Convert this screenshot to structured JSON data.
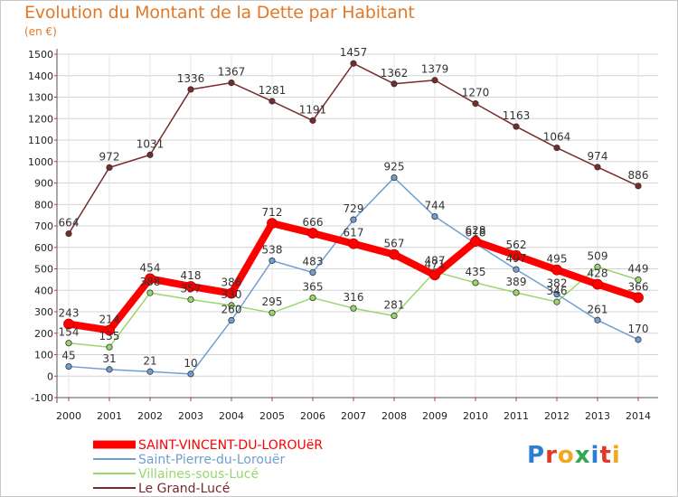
{
  "title": "Evolution du Montant de la Dette par Habitant",
  "subtitle": "(en €)",
  "logo": {
    "text": "Proxiti"
  },
  "chart_data": {
    "type": "line",
    "x": [
      "2000",
      "2001",
      "2002",
      "2003",
      "2004",
      "2005",
      "2006",
      "2007",
      "2008",
      "2009",
      "2010",
      "2011",
      "2012",
      "2013",
      "2014"
    ],
    "yticks": [
      -100,
      0,
      100,
      200,
      300,
      400,
      500,
      600,
      700,
      800,
      900,
      1000,
      1100,
      1200,
      1300,
      1400,
      1500
    ],
    "ylim": [
      -100,
      1500
    ],
    "grid": true,
    "legend_position": "bottom-left",
    "series": [
      {
        "name": "Le Grand-Lucé",
        "color": "#7a2a2a",
        "width": 1.5,
        "values": [
          664,
          972,
          1031,
          1336,
          1367,
          1281,
          1191,
          1457,
          1362,
          1379,
          1270,
          1163,
          1064,
          974,
          886
        ]
      },
      {
        "name": "Villaines-sous-Lucé",
        "color": "#99d66b",
        "width": 1.5,
        "values": [
          154,
          135,
          388,
          357,
          330,
          295,
          365,
          316,
          281,
          487,
          435,
          389,
          346,
          509,
          449
        ]
      },
      {
        "name": "Saint-Pierre-du-Lorouër",
        "color": "#6f9fd0",
        "width": 1.5,
        "values": [
          45,
          31,
          21,
          10,
          260,
          538,
          483,
          729,
          925,
          744,
          618,
          497,
          382,
          261,
          170
        ]
      },
      {
        "name": "SAINT-VINCENT-DU-LOROUëR",
        "color": "#ff0000",
        "width": 8,
        "values": [
          243,
          214,
          454,
          418,
          386,
          712,
          666,
          617,
          567,
          471,
          628,
          562,
          495,
          428,
          366
        ]
      }
    ]
  },
  "legend": [
    {
      "name": "SAINT-VINCENT-DU-LOROUëR",
      "color": "#ff0000"
    },
    {
      "name": "Saint-Pierre-du-Lorouër",
      "color": "#6f9fd0"
    },
    {
      "name": "Villaines-sous-Lucé",
      "color": "#99d66b"
    },
    {
      "name": "Le Grand-Lucé",
      "color": "#7a2a2a"
    }
  ]
}
